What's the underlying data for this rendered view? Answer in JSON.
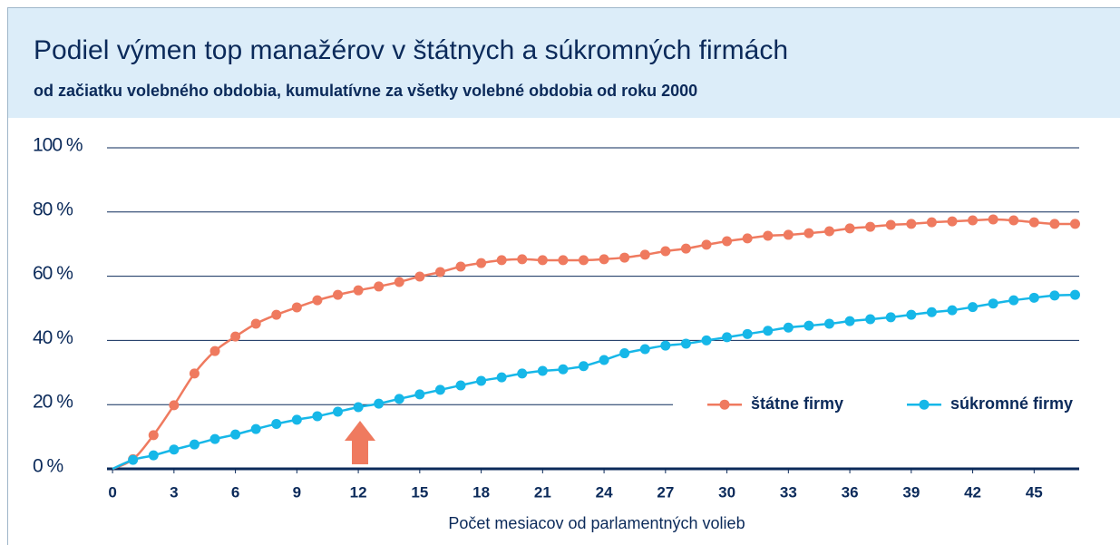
{
  "chart_data": {
    "type": "line",
    "title": "Podiel výmen top manažérov v štátnych a súkromných firmách",
    "subtitle": "od začiatku volebného obdobia, kumulatívne za všetky volebné obdobia od roku 2000",
    "x_label": "Počet mesiacov od parlamentných volieb",
    "x": [
      0,
      1,
      2,
      3,
      4,
      5,
      6,
      7,
      8,
      9,
      10,
      11,
      12,
      13,
      14,
      15,
      16,
      17,
      18,
      19,
      20,
      21,
      22,
      23,
      24,
      25,
      26,
      27,
      28,
      29,
      30,
      31,
      32,
      33,
      34,
      35,
      36,
      37,
      38,
      39,
      40,
      41,
      42,
      43,
      44,
      45,
      46,
      47
    ],
    "series": [
      {
        "name": "štátne firmy",
        "color": "#ef7a5f",
        "values": [
          0,
          3,
          10.5,
          19.8,
          29.7,
          36.7,
          41.2,
          45.2,
          48,
          50.3,
          52.5,
          54.2,
          55.6,
          56.8,
          58.2,
          59.9,
          61.3,
          63,
          64.1,
          65,
          65.3,
          65,
          65,
          65,
          65.3,
          65.8,
          66.7,
          67.8,
          68.6,
          69.8,
          70.9,
          71.8,
          72.6,
          72.9,
          73.4,
          74,
          74.9,
          75.4,
          76,
          76.3,
          76.8,
          77.1,
          77.4,
          77.7,
          77.4,
          76.8,
          76.3,
          76.3
        ]
      },
      {
        "name": "súkromné firmy",
        "color": "#16b7e8",
        "values": [
          0,
          2.8,
          4.2,
          6,
          7.6,
          9.3,
          10.7,
          12.4,
          14,
          15.3,
          16.4,
          17.8,
          19.2,
          20.3,
          21.8,
          23.2,
          24.6,
          26,
          27.4,
          28.5,
          29.7,
          30.5,
          31,
          32,
          33.9,
          36,
          37.3,
          38.4,
          39,
          40,
          41,
          42,
          43,
          44,
          44.6,
          45.2,
          46,
          46.6,
          47.2,
          48,
          48.8,
          49.4,
          50.4,
          51.5,
          52.5,
          53.3,
          54,
          54.2
        ]
      }
    ],
    "xlim": [
      -0.27,
      47.2
    ],
    "xticks": [
      0,
      3,
      6,
      9,
      12,
      15,
      18,
      21,
      24,
      27,
      30,
      33,
      36,
      39,
      42,
      45
    ],
    "ylim": [
      0,
      100
    ],
    "yticks": [
      {
        "value": 0,
        "label": "0 %"
      },
      {
        "value": 20,
        "label": "20 %"
      },
      {
        "value": 40,
        "label": "40 %"
      },
      {
        "value": 60,
        "label": "60 %"
      },
      {
        "value": 80,
        "label": "80 %"
      },
      {
        "value": 100,
        "label": "100 %"
      }
    ],
    "grid": true,
    "legend": "lower right"
  }
}
